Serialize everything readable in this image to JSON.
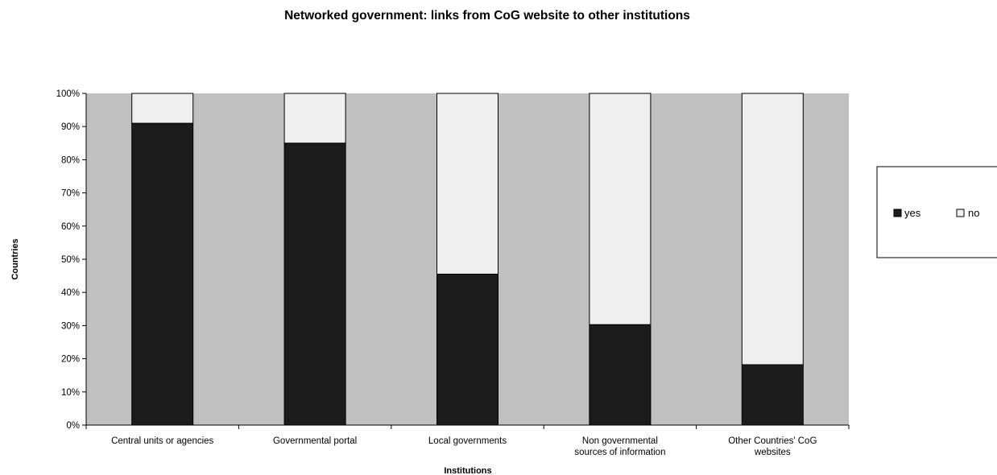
{
  "chart_data": {
    "type": "bar",
    "stacked": true,
    "percent_stacked": true,
    "title": "Networked government: links from CoG website to other institutions",
    "xlabel": "Institutions",
    "ylabel": "Countries",
    "ylim": [
      0,
      100
    ],
    "y_ticks": [
      "0%",
      "10%",
      "20%",
      "30%",
      "40%",
      "50%",
      "60%",
      "70%",
      "80%",
      "90%",
      "100%"
    ],
    "categories": [
      [
        "Central units or agencies"
      ],
      [
        "Governmental portal"
      ],
      [
        "Local governments"
      ],
      [
        "Non governmental",
        "sources of information"
      ],
      [
        "Other Countries' CoG",
        "websites"
      ]
    ],
    "series": [
      {
        "name": "yes",
        "color": "#1c1c1c",
        "values": [
          91,
          85,
          45.5,
          30.3,
          18.2
        ]
      },
      {
        "name": "no",
        "color": "#efefef",
        "values": [
          9,
          15,
          54.5,
          69.7,
          81.8
        ]
      }
    ],
    "plot_background": "#c0c0c0",
    "grid": false,
    "legend_position": "right"
  }
}
